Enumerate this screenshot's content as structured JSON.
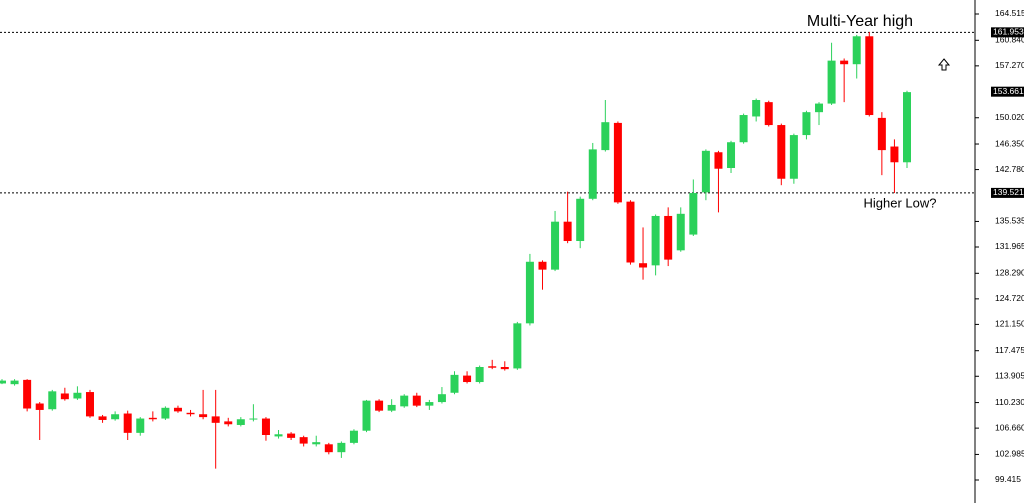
{
  "chart_data": {
    "type": "candlestick",
    "annotations": [
      "Multi-Year high",
      "Higher Low?"
    ],
    "open": [
      112.9,
      112.8,
      113.4,
      110.1,
      109.3,
      111.5,
      110.8,
      111.7,
      108.3,
      107.9,
      108.7,
      106.0,
      108.1,
      108.0,
      109.5,
      108.8,
      108.6,
      108.3,
      107.6,
      107.1,
      107.9,
      108.0,
      105.5,
      105.9,
      105.4,
      104.4,
      104.4,
      103.3,
      104.6,
      106.3,
      110.5,
      109.1,
      109.7,
      111.2,
      109.8,
      110.3,
      111.6,
      114.0,
      113.1,
      115.3,
      115.2,
      115.0,
      121.3,
      129.9,
      128.8,
      135.5,
      132.8,
      138.7,
      145.5,
      149.3,
      138.3,
      129.7,
      129.4,
      136.3,
      131.5,
      133.7,
      139.6,
      145.2,
      143.0,
      146.6,
      150.2,
      152.2,
      149.0,
      141.5,
      147.6,
      150.8,
      152.0,
      158.0,
      157.5,
      161.4,
      150.0,
      146.0,
      143.8
    ],
    "high": [
      113.5,
      113.5,
      113.5,
      110.3,
      112.0,
      112.3,
      112.5,
      112.0,
      108.5,
      109.0,
      109.1,
      108.2,
      109.0,
      109.7,
      109.8,
      109.2,
      112.0,
      112.0,
      108.1,
      108.2,
      110.0,
      108.2,
      106.4,
      106.1,
      105.6,
      105.6,
      104.6,
      104.8,
      106.5,
      110.6,
      110.7,
      110.7,
      111.4,
      111.6,
      110.6,
      112.4,
      114.6,
      114.6,
      115.4,
      116.2,
      116.0,
      121.5,
      131.0,
      130.1,
      137.0,
      139.7,
      139.0,
      146.5,
      152.5,
      149.5,
      138.5,
      134.7,
      136.5,
      137.5,
      137.5,
      141.4,
      145.6,
      145.4,
      146.8,
      150.6,
      152.7,
      152.4,
      149.2,
      147.8,
      151.0,
      152.2,
      160.5,
      158.3,
      161.6,
      162.0,
      150.8,
      147.0,
      153.8
    ],
    "low": [
      112.8,
      112.6,
      109.0,
      105.0,
      109.1,
      110.5,
      110.6,
      108.1,
      107.4,
      107.7,
      105.0,
      105.6,
      107.6,
      107.8,
      108.8,
      108.3,
      107.9,
      101.0,
      106.9,
      106.9,
      107.6,
      104.9,
      105.2,
      105.0,
      104.1,
      104.1,
      103.0,
      102.5,
      104.4,
      106.1,
      108.9,
      108.9,
      109.5,
      109.6,
      109.2,
      110.1,
      111.4,
      112.9,
      112.9,
      114.9,
      114.7,
      114.8,
      121.0,
      126.0,
      128.6,
      132.5,
      131.8,
      138.5,
      145.3,
      138.0,
      129.5,
      127.4,
      128.0,
      129.3,
      131.3,
      133.5,
      138.5,
      136.8,
      142.3,
      146.4,
      149.5,
      148.8,
      140.6,
      140.8,
      147.0,
      149.0,
      151.8,
      152.2,
      155.5,
      150.2,
      142.0,
      139.5,
      143.0
    ],
    "close": [
      113.3,
      113.3,
      109.4,
      109.2,
      111.8,
      110.7,
      111.6,
      108.3,
      107.8,
      108.6,
      106.0,
      108.0,
      107.9,
      109.5,
      109.0,
      108.6,
      108.2,
      107.4,
      107.2,
      107.9,
      108.0,
      105.7,
      105.8,
      105.3,
      104.5,
      104.7,
      103.3,
      104.6,
      106.3,
      110.5,
      109.1,
      109.9,
      111.2,
      109.8,
      110.3,
      111.4,
      114.1,
      113.1,
      115.2,
      115.1,
      114.9,
      121.3,
      129.9,
      128.8,
      135.5,
      132.8,
      138.7,
      145.6,
      149.4,
      138.2,
      129.8,
      129.1,
      136.3,
      130.2,
      136.6,
      139.5,
      145.4,
      142.9,
      146.6,
      150.4,
      152.5,
      149.0,
      141.5,
      147.6,
      150.8,
      152.0,
      158.0,
      157.5,
      161.4,
      150.4,
      145.5,
      143.8,
      153.6
    ],
    "up_color": "#2bd15a",
    "down_color": "#ff0000",
    "ylim": [
      96.2,
      166.47
    ],
    "yticks": [
      164.515,
      {
        "value": 160.84,
        "label": "160.840"
      },
      {
        "value": 157.27,
        "label": "157.270"
      },
      {
        "value": 150.02,
        "label": "150.020"
      },
      {
        "value": 146.35,
        "label": "146.350"
      },
      {
        "value": 142.78,
        "label": "142.780"
      },
      135.535,
      131.965,
      {
        "value": 128.29,
        "label": "128.290"
      },
      {
        "value": 124.72,
        "label": "124.720"
      },
      {
        "value": 121.15,
        "label": "121.150"
      },
      117.475,
      113.905,
      {
        "value": 110.23,
        "label": "110.230"
      },
      {
        "value": 106.66,
        "label": "106.660"
      },
      102.985,
      99.415
    ],
    "level_lines": [
      161.953,
      139.521
    ],
    "price_label": 153.661
  }
}
